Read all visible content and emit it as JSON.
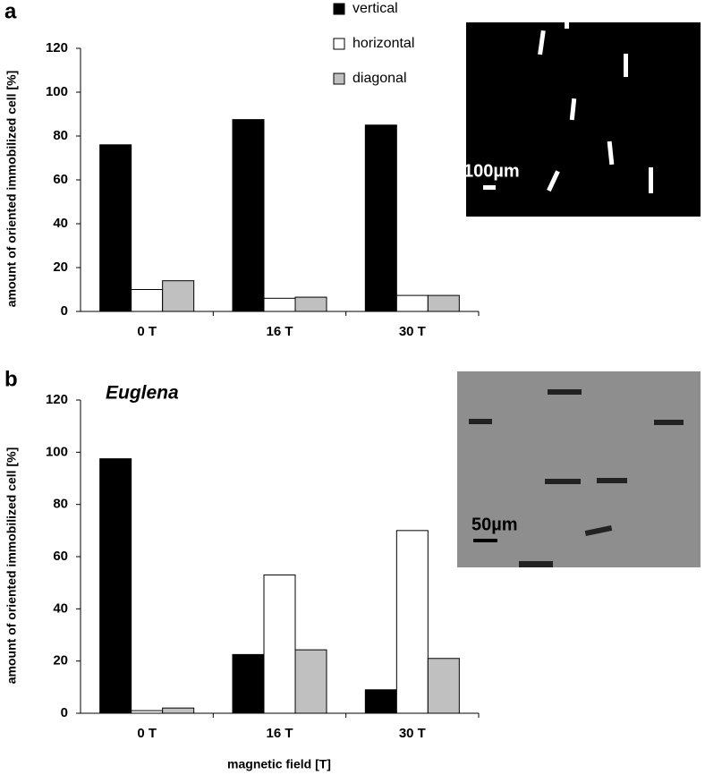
{
  "chart_data": [
    {
      "type": "bar",
      "panel_label": "a",
      "y_label": "amount of oriented immobilized cell [%]",
      "categories": [
        "0 T",
        "16 T",
        "30 T"
      ],
      "series": [
        {
          "name": "vertical",
          "color": "#000000",
          "values": [
            76,
            87.5,
            85
          ]
        },
        {
          "name": "horizontal",
          "color": "#ffffff",
          "values": [
            10,
            6,
            7.3
          ]
        },
        {
          "name": "diagonal",
          "color": "#c0c0c0",
          "values": [
            14,
            6.5,
            7.3
          ]
        }
      ],
      "ylim": [
        0,
        120
      ],
      "yticks": [
        0,
        20,
        40,
        60,
        80,
        100,
        120
      ],
      "grid": false,
      "legend": "top",
      "inset_label": "100µm"
    },
    {
      "type": "bar",
      "panel_label": "b",
      "annotation": "Euglena",
      "y_label": "amount of oriented immobilized cell [%]",
      "x_label": "magnetic field [T]",
      "categories": [
        "0 T",
        "16 T",
        "30 T"
      ],
      "series": [
        {
          "color": "#000000",
          "values": [
            97.5,
            22.5,
            9
          ]
        },
        {
          "color": "#ffffff",
          "values": [
            1,
            53,
            70
          ]
        },
        {
          "color": "#c0c0c0",
          "values": [
            2,
            24.3,
            21
          ]
        }
      ],
      "ylim": [
        0,
        120
      ],
      "yticks": [
        0,
        20,
        40,
        60,
        80,
        100,
        120
      ],
      "grid": false,
      "inset_label": "50µm"
    }
  ]
}
